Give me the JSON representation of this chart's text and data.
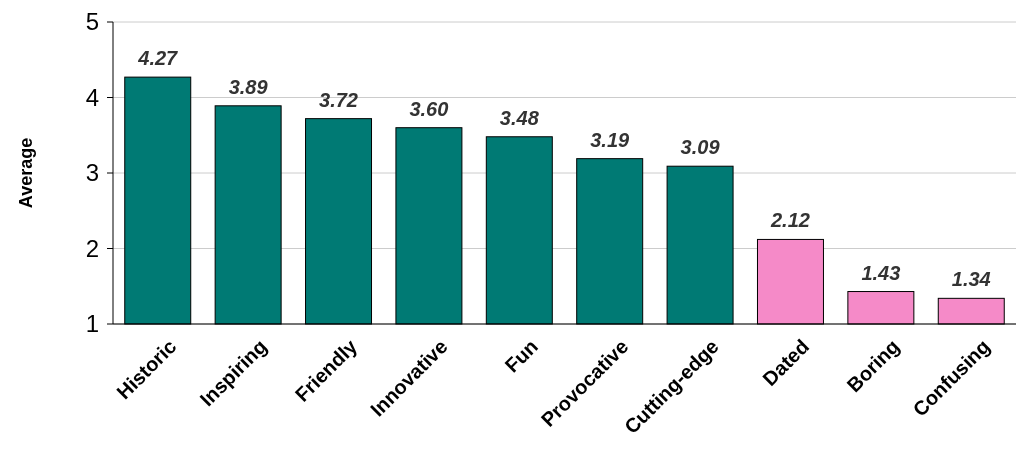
{
  "chart_data": {
    "type": "bar",
    "ylabel": "Average",
    "categories": [
      "Historic",
      "Inspiring",
      "Friendly",
      "Innovative",
      "Fun",
      "Provocative",
      "Cutting-edge",
      "Dated",
      "Boring",
      "Confusing"
    ],
    "values": [
      4.27,
      3.89,
      3.72,
      3.6,
      3.48,
      3.19,
      3.09,
      2.12,
      1.43,
      1.34
    ],
    "value_labels": [
      "4.27",
      "3.89",
      "3.72",
      "3.60",
      "3.48",
      "3.19",
      "3.09",
      "2.12",
      "1.43",
      "1.34"
    ],
    "colors": [
      "#007a74",
      "#007a74",
      "#007a74",
      "#007a74",
      "#007a74",
      "#007a74",
      "#007a74",
      "#f58ac8",
      "#f58ac8",
      "#f58ac8"
    ],
    "ylim": [
      1,
      5
    ],
    "yticks": [
      1,
      2,
      3,
      4,
      5
    ],
    "grid": "y"
  }
}
